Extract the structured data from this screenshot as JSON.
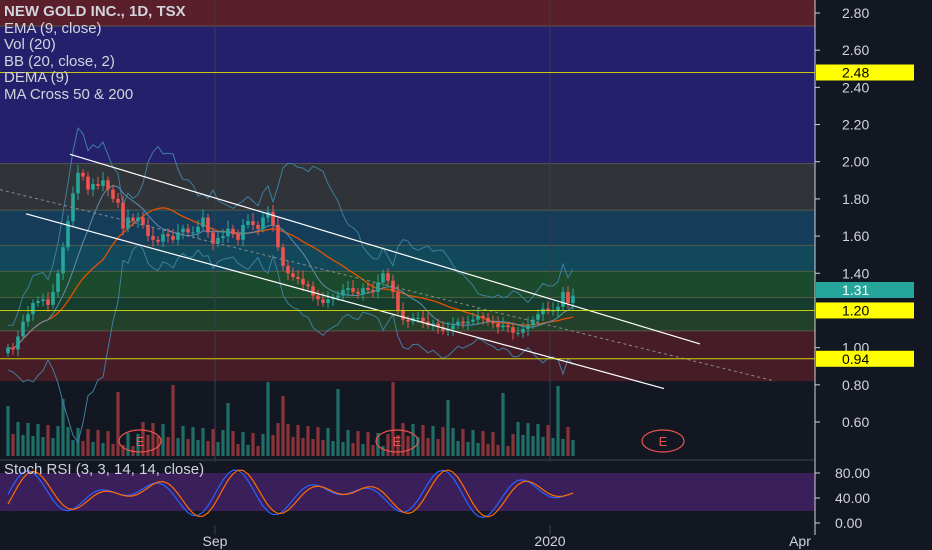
{
  "header": {
    "title": "NEW GOLD INC., 1D, TSX",
    "indicators": [
      "EMA (9, close)",
      "Vol (20)",
      "BB (20, close, 2)",
      "DEMA (9)",
      "MA Cross 50 & 200"
    ]
  },
  "stoch": {
    "label": "Stoch RSI (3, 3, 14, 14, close)"
  },
  "colors": {
    "background": "#131722",
    "up": "#26a69a",
    "down": "#ef5350",
    "accent_yellow": "#ffff00",
    "price_teal": "#26a69a"
  },
  "chart_data": {
    "type": "candlestick",
    "symbol": "NEW GOLD INC.",
    "interval": "1D",
    "exchange": "TSX",
    "ylim": [
      0.38,
      2.92
    ],
    "y_ticks": [
      "2.80",
      "2.60",
      "2.40",
      "2.20",
      "2.00",
      "1.80",
      "1.60",
      "1.40",
      "1.00",
      "0.80",
      "0.60"
    ],
    "x_ticks": [
      "Sep",
      "2020",
      "Apr"
    ],
    "price_labels": [
      {
        "value": "2.48",
        "style": "yellow"
      },
      {
        "value": "1.31",
        "style": "teal"
      },
      {
        "value": "1.20",
        "style": "yellow"
      },
      {
        "value": "0.94",
        "style": "yellow"
      }
    ],
    "fib_levels": [
      2.92,
      2.73,
      2.48,
      1.99,
      1.74,
      1.55,
      1.41,
      1.27,
      1.2,
      1.09,
      0.94,
      0.82
    ],
    "fib_colors": [
      "#5a1f2a",
      "#25206c",
      "#25206c",
      "#303338",
      "#153d5a",
      "#11495a",
      "#1c4a2c",
      "#153c2c",
      "#22402a",
      "#461d26",
      "#461d26"
    ],
    "close": [
      1.0,
      0.99,
      1.06,
      1.14,
      1.18,
      1.24,
      1.25,
      1.26,
      1.23,
      1.3,
      1.4,
      1.54,
      1.68,
      1.83,
      1.94,
      1.92,
      1.85,
      1.88,
      1.87,
      1.9,
      1.85,
      1.8,
      1.78,
      1.64,
      1.7,
      1.68,
      1.7,
      1.66,
      1.6,
      1.58,
      1.57,
      1.61,
      1.6,
      1.58,
      1.62,
      1.64,
      1.62,
      1.62,
      1.65,
      1.7,
      1.62,
      1.56,
      1.59,
      1.6,
      1.64,
      1.61,
      1.58,
      1.66,
      1.68,
      1.66,
      1.64,
      1.7,
      1.73,
      1.66,
      1.54,
      1.44,
      1.4,
      1.38,
      1.37,
      1.34,
      1.33,
      1.28,
      1.26,
      1.24,
      1.26,
      1.27,
      1.28,
      1.31,
      1.32,
      1.3,
      1.29,
      1.32,
      1.31,
      1.3,
      1.35,
      1.4,
      1.36,
      1.3,
      1.2,
      1.15,
      1.14,
      1.16,
      1.16,
      1.14,
      1.12,
      1.13,
      1.11,
      1.09,
      1.1,
      1.12,
      1.14,
      1.13,
      1.14,
      1.15,
      1.17,
      1.16,
      1.14,
      1.13,
      1.11,
      1.12,
      1.11,
      1.08,
      1.08,
      1.1,
      1.12,
      1.15,
      1.18,
      1.21,
      1.2,
      1.2,
      1.22,
      1.3,
      1.24,
      1.28
    ],
    "volume_scale_note": "volume bars in lower band",
    "stoch_rsi": {
      "ylim": [
        0,
        100
      ],
      "y_ticks": [
        "80.00",
        "40.00",
        "0.00"
      ]
    }
  }
}
